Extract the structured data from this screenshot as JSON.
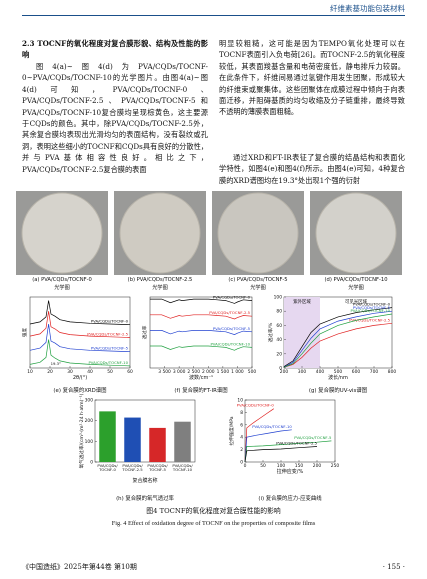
{
  "header": {
    "journal_section": "纤维素基功能包装材料"
  },
  "section": {
    "heading": "2.3 TOCNF的氧化程度对复合膜形貌、结构及性能的影响",
    "left_text": "图4(a)~图4(d)为PVA/CQDs/TOCNF-0~PVA/CQDs/TOCNF-10的光学图片。由图4(a)~图4(d)可知，PVA/CQDs/TOCNF-0、PVA/CQDs/TOCNF-2.5、PVA/CQDs/TOCNF-5和PVA/CQDs/TOCNF-10复合膜均呈现棕黄色，这主要源于CQDs的颜色。其中，除PVA/CQDs/TOCNF-2.5外，其余复合膜均表现出光滑均匀的表面结构，没有裂纹或孔洞，表明这些细小的TOCNF和CQDs具有良好的分散性，并与PVA基体相容性良好。相比之下，PVA/CQDs/TOCNF-2.5复合膜的表面",
    "right_text_1": "明显较粗糙，这可能是因为TEMPO氧化处理可以在TOCNF表面引入负电荷[26]。而TOCNF-2.5的氧化程度较低，其表面羧基含量和电荷密度低，静电排斥力较弱。在此条件下，纤维间易通过氢键作用发生团聚，形成较大的纤维束或聚集体。这些团聚体在成膜过程中倾向于向表面迁移，并阻碍基质的均匀收缩及分子链重排，最终导致不透明的薄膜表面粗糙。",
    "right_text_2": "通过XRD和FT-IR表征了复合膜的结晶结构和表面化学特性，如图4(e)和图4(f)所示。由图4(e)可知，4种复合膜的XRD谱图均在19.3°处出现1个强的衍射"
  },
  "figure": {
    "photos": [
      {
        "caption": "(a) PVA/CQDs/TOCNF-0",
        "sub": "光学图"
      },
      {
        "caption": "(b) PVA/CQDs/TOCNF-2.5",
        "sub": "光学图"
      },
      {
        "caption": "(c) PVA/CQDs/TOCNF-5",
        "sub": "光学图"
      },
      {
        "caption": "(d) PVA/CQDs/TOCNF-10",
        "sub": "光学图"
      }
    ],
    "charts": [
      {
        "type": "line",
        "caption": "(e) 复合膜的XRD谱图",
        "xlabel": "2θ/(°)",
        "ylabel": "强度",
        "annotation": "19.3°",
        "x": [
          10,
          15,
          18,
          19.3,
          20.5,
          22.5,
          25,
          30,
          40,
          50,
          60
        ],
        "xlim": [
          10,
          60
        ],
        "xticks": [
          10,
          20,
          30,
          40,
          50,
          60
        ],
        "ylim": [
          0,
          100
        ],
        "series": [
          {
            "name": "PVA/CQDs/TOCNF-0",
            "color": "#000000",
            "values": [
              62,
              65,
              72,
              95,
              76,
              73,
              68,
              65,
              63,
              62,
              61
            ]
          },
          {
            "name": "PVA/CQDs/TOCNF-2.5",
            "color": "#e02020",
            "values": [
              45,
              48,
              56,
              80,
              58,
              55,
              50,
              47,
              45,
              44,
              43
            ]
          },
          {
            "name": "PVA/CQDs/TOCNF-5",
            "color": "#2040d0",
            "values": [
              25,
              28,
              36,
              62,
              38,
              35,
              30,
              27,
              25,
              24,
              23
            ]
          },
          {
            "name": "PVA/CQDs/TOCNF-10",
            "color": "#20a040",
            "values": [
              5,
              8,
              15,
              40,
              18,
              14,
              10,
              7,
              5,
              4,
              3
            ]
          }
        ]
      },
      {
        "type": "line",
        "caption": "(f) 复合膜的FT-IR谱图",
        "xlabel": "波数/cm⁻¹",
        "ylabel": "透过率",
        "x": [
          4000,
          3600,
          3300,
          3000,
          2900,
          2500,
          2000,
          1700,
          1400,
          1100,
          1000,
          800,
          500
        ],
        "xlim": [
          4000,
          500
        ],
        "xticks": [
          {
            "value": 3500,
            "label": "3 500"
          },
          {
            "value": 3000,
            "label": "3 000"
          },
          {
            "value": 2500,
            "label": "2 500"
          },
          {
            "value": 2000,
            "label": "2 000"
          },
          {
            "value": 1500,
            "label": "1 500"
          },
          {
            "value": 1000,
            "label": "1 000"
          },
          500
        ],
        "ylim": [
          0,
          100
        ],
        "series": [
          {
            "name": "PVA/CQDs/TOCNF-0",
            "color": "#000000",
            "values": [
              97,
              97,
              92,
              96,
              95,
              97,
              97,
              96,
              95,
              91,
              93,
              96,
              95
            ]
          },
          {
            "name": "PVA/CQDs/TOCNF-2.5",
            "color": "#e02020",
            "values": [
              75,
              75,
              70,
              74,
              73,
              75,
              75,
              74,
              73,
              69,
              71,
              74,
              73
            ]
          },
          {
            "name": "PVA/CQDs/TOCNF-5",
            "color": "#2040d0",
            "values": [
              53,
              53,
              48,
              52,
              51,
              53,
              53,
              52,
              51,
              47,
              49,
              52,
              51
            ]
          },
          {
            "name": "PVA/CQDs/TOCNF-10",
            "color": "#20a040",
            "values": [
              31,
              31,
              26,
              30,
              29,
              31,
              31,
              30,
              29,
              25,
              27,
              30,
              29
            ]
          }
        ]
      },
      {
        "type": "line",
        "caption": "(g) 复合膜的UV-vis谱图",
        "xlabel": "波长/nm",
        "ylabel": "透过率/%",
        "uv_label": "紫外区域",
        "vis_label": "可见光区域",
        "uv_range": [
          200,
          400
        ],
        "x": [
          200,
          250,
          300,
          350,
          400,
          500,
          600,
          700,
          800
        ],
        "xlim": [
          200,
          800
        ],
        "xticks": [
          200,
          300,
          400,
          500,
          600,
          700,
          800
        ],
        "ylim": [
          0,
          100
        ],
        "yticks": [
          0,
          20,
          40,
          60,
          80,
          100
        ],
        "series": [
          {
            "name": "PVA/CQDs/TOCNF-0",
            "color": "#000000",
            "values": [
              2,
              10,
              30,
              50,
              62,
              72,
              78,
              82,
              85
            ]
          },
          {
            "name": "PVA/CQDs/TOCNF-2.5",
            "color": "#e02020",
            "values": [
              1,
              5,
              15,
              28,
              38,
              48,
              55,
              60,
              63
            ]
          },
          {
            "name": "PVA/CQDs/TOCNF-5",
            "color": "#2040d0",
            "values": [
              1,
              8,
              25,
              42,
              55,
              66,
              72,
              77,
              80
            ]
          },
          {
            "name": "PVA/CQDs/TOCNF-10",
            "color": "#20a040",
            "values": [
              1,
              6,
              20,
              35,
              48,
              60,
              67,
              72,
              76
            ]
          }
        ]
      },
      {
        "type": "bar",
        "caption": "(h) 复合膜的氧气透过率",
        "xlabel": "复合膜名称",
        "ylabel": "氧气透过率/(cm³·(m²·24 h·atm)⁻¹)",
        "categories": [
          "PVA/CQDs/TOCNF-0",
          "PVA/CQDs/TOCNF-2.5",
          "PVA/CQDs/TOCNF-5",
          "PVA/CQDs/TOCNF-10"
        ],
        "values": [
          245,
          215,
          165,
          195
        ],
        "colors": [
          "#2ca02c",
          "#1f4fb4",
          "#d62728",
          "#7f7f7f"
        ],
        "ylim": [
          0,
          300
        ],
        "yticks": [
          0,
          100,
          200,
          300
        ]
      },
      {
        "type": "line",
        "caption": "(i) 复合膜的应力-应变曲线",
        "xlabel": "拉伸应变/%",
        "ylabel": "拉伸强度/MPa",
        "xlim": [
          0,
          250
        ],
        "xticks": [
          0,
          50,
          100,
          150,
          200,
          250
        ],
        "ylim": [
          0,
          10
        ],
        "yticks": [
          0,
          2,
          4,
          6,
          8,
          10
        ],
        "series": [
          {
            "name": "PVA/CQDs/TOCNF-0",
            "color": "#e02020",
            "x": [
              0,
              5,
              20,
              40,
              60,
              75,
              80
            ],
            "values": [
              0,
              5.5,
              6.2,
              7,
              7.8,
              8.4,
              8.6
            ]
          },
          {
            "name": "PVA/CQDs/TOCNF-10",
            "color": "#2040d0",
            "x": [
              0,
              5,
              30,
              60,
              100,
              130
            ],
            "values": [
              0,
              4,
              4.3,
              4.6,
              5,
              5.2
            ]
          },
          {
            "name": "PVA/CQDs/TOCNF-5",
            "color": "#20a040",
            "x": [
              0,
              5,
              50,
              100,
              150,
              200,
              240
            ],
            "values": [
              0,
              2.5,
              2.6,
              2.8,
              3,
              3.2,
              3.4
            ]
          },
          {
            "name": "PVA/CQDs/TOCNF-2.5",
            "color": "#000000",
            "x": [
              0,
              5,
              50,
              100,
              150,
              200
            ],
            "values": [
              0,
              1.8,
              2,
              2.1,
              2.3,
              2.5
            ]
          }
        ]
      }
    ],
    "caption_cn": "图4 TOCNF的氧化程度对复合膜性能的影响",
    "caption_en": "Fig. 4 Effect of oxidation degree of TOCNF on the properties of composite films"
  },
  "footer": {
    "journal": "《中国造纸》2025年第44卷 第10期",
    "page": "· 155 ·"
  }
}
